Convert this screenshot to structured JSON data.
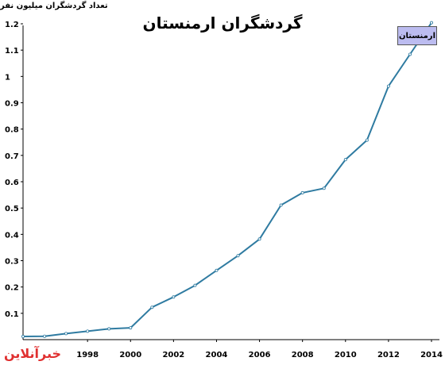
{
  "chart_data": {
    "type": "line",
    "title": "گردشگران ارمنستان",
    "ylabel": "تعداد گردشگران میلیون نفر",
    "xlabel": "",
    "series": [
      {
        "name": "ارمنستان",
        "color": "#2f7ba1",
        "points": [
          {
            "x": 1995,
            "y": 0.012
          },
          {
            "x": 1996,
            "y": 0.013
          },
          {
            "x": 1997,
            "y": 0.023
          },
          {
            "x": 1998,
            "y": 0.032
          },
          {
            "x": 1999,
            "y": 0.041
          },
          {
            "x": 2000,
            "y": 0.045
          },
          {
            "x": 2001,
            "y": 0.123
          },
          {
            "x": 2002,
            "y": 0.162
          },
          {
            "x": 2003,
            "y": 0.206
          },
          {
            "x": 2004,
            "y": 0.263
          },
          {
            "x": 2005,
            "y": 0.319
          },
          {
            "x": 2006,
            "y": 0.382
          },
          {
            "x": 2007,
            "y": 0.511
          },
          {
            "x": 2008,
            "y": 0.558
          },
          {
            "x": 2009,
            "y": 0.575
          },
          {
            "x": 2010,
            "y": 0.684
          },
          {
            "x": 2011,
            "y": 0.758
          },
          {
            "x": 2012,
            "y": 0.963
          },
          {
            "x": 2013,
            "y": 1.084
          },
          {
            "x": 2014,
            "y": 1.204
          }
        ]
      }
    ],
    "xlim": [
      1995,
      2014
    ],
    "ylim": [
      0,
      1.2
    ],
    "x_ticks": [
      {
        "value": 1998,
        "label": "1998"
      },
      {
        "value": 2000,
        "label": "2000"
      },
      {
        "value": 2002,
        "label": "2002"
      },
      {
        "value": 2004,
        "label": "2004"
      },
      {
        "value": 2006,
        "label": "2006"
      },
      {
        "value": 2008,
        "label": "2008"
      },
      {
        "value": 2010,
        "label": "2010"
      },
      {
        "value": 2012,
        "label": "2012"
      },
      {
        "value": 2014,
        "label": "2014"
      }
    ],
    "y_ticks": [
      {
        "value": 0.1,
        "label": "0.1"
      },
      {
        "value": 0.2,
        "label": "0.2"
      },
      {
        "value": 0.3,
        "label": "0.3"
      },
      {
        "value": 0.4,
        "label": "0.4"
      },
      {
        "value": 0.5,
        "label": "0.5"
      },
      {
        "value": 0.6,
        "label": "0.6"
      },
      {
        "value": 0.7,
        "label": "0.7"
      },
      {
        "value": 0.8,
        "label": "0.8"
      },
      {
        "value": 0.9,
        "label": "0.9"
      },
      {
        "value": 1.0,
        "label": "1"
      },
      {
        "value": 1.1,
        "label": "1.1"
      },
      {
        "value": 1.2,
        "label": "1.2"
      }
    ],
    "grid": false,
    "legend": "top-right"
  },
  "watermark": {
    "text": "خبرآنلاین",
    "color": "#e03030"
  }
}
